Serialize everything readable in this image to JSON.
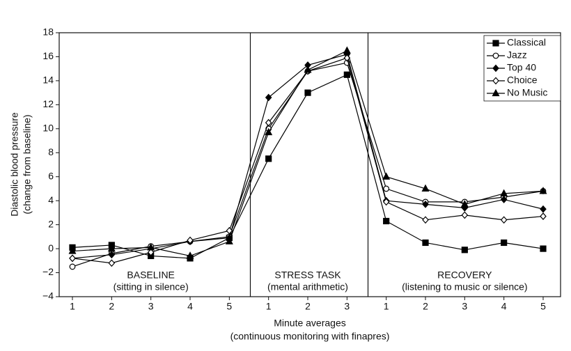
{
  "chart_data": {
    "type": "line",
    "y_label": [
      "Diastolic blood pressure",
      "(change from baseline)"
    ],
    "x_label": [
      "Minute averages",
      "(continuous monitoring with finapres)"
    ],
    "sections": [
      {
        "title": "BASELINE",
        "subtitle": "(sitting in silence)",
        "categories": [
          "1",
          "2",
          "3",
          "4",
          "5"
        ]
      },
      {
        "title": "STRESS TASK",
        "subtitle": "(mental arithmetic)",
        "categories": [
          "1",
          "2",
          "3"
        ]
      },
      {
        "title": "RECOVERY",
        "subtitle": "(listening to music or silence)",
        "categories": [
          "1",
          "2",
          "3",
          "4",
          "5"
        ]
      }
    ],
    "series": [
      {
        "name": "Classical",
        "color": "#000000",
        "marker": "square",
        "values": [
          0.1,
          0.3,
          -0.6,
          -0.8,
          0.9,
          7.5,
          13,
          14.5,
          2.3,
          0.5,
          -0.1,
          0.5,
          0
        ]
      },
      {
        "name": "Jazz",
        "color": "#000000",
        "marker": "circle-open",
        "values": [
          -1.5,
          -0.4,
          0.2,
          0.6,
          1.0,
          10,
          14.8,
          15.5,
          5,
          3.9,
          3.9,
          4.3,
          4.8
        ]
      },
      {
        "name": "Top 40",
        "color": "#000000",
        "marker": "diamond",
        "values": [
          -0.8,
          -0.5,
          0,
          0.6,
          0.9,
          12.6,
          15.3,
          16.2,
          4,
          3.7,
          3.4,
          4.1,
          3.3
        ]
      },
      {
        "name": "Choice",
        "color": "#000000",
        "marker": "diamond-open",
        "values": [
          -0.8,
          -1.2,
          -0.3,
          0.7,
          1.5,
          10.5,
          14.8,
          15.9,
          3.9,
          2.4,
          2.8,
          2.4,
          2.7
        ]
      },
      {
        "name": "No Music",
        "color": "#000000",
        "marker": "triangle",
        "values": [
          -0.2,
          0,
          0.1,
          -0.6,
          0.6,
          9.7,
          14.9,
          16.5,
          6,
          5,
          3.7,
          4.6,
          4.8
        ]
      }
    ],
    "ylim": [
      -4,
      18
    ],
    "yticks": [
      {
        "value": -4,
        "label": "−4"
      },
      {
        "value": -2,
        "label": "−2"
      },
      0,
      2,
      4,
      6,
      8,
      10,
      12,
      14,
      16,
      18
    ],
    "legend": "upper right"
  }
}
